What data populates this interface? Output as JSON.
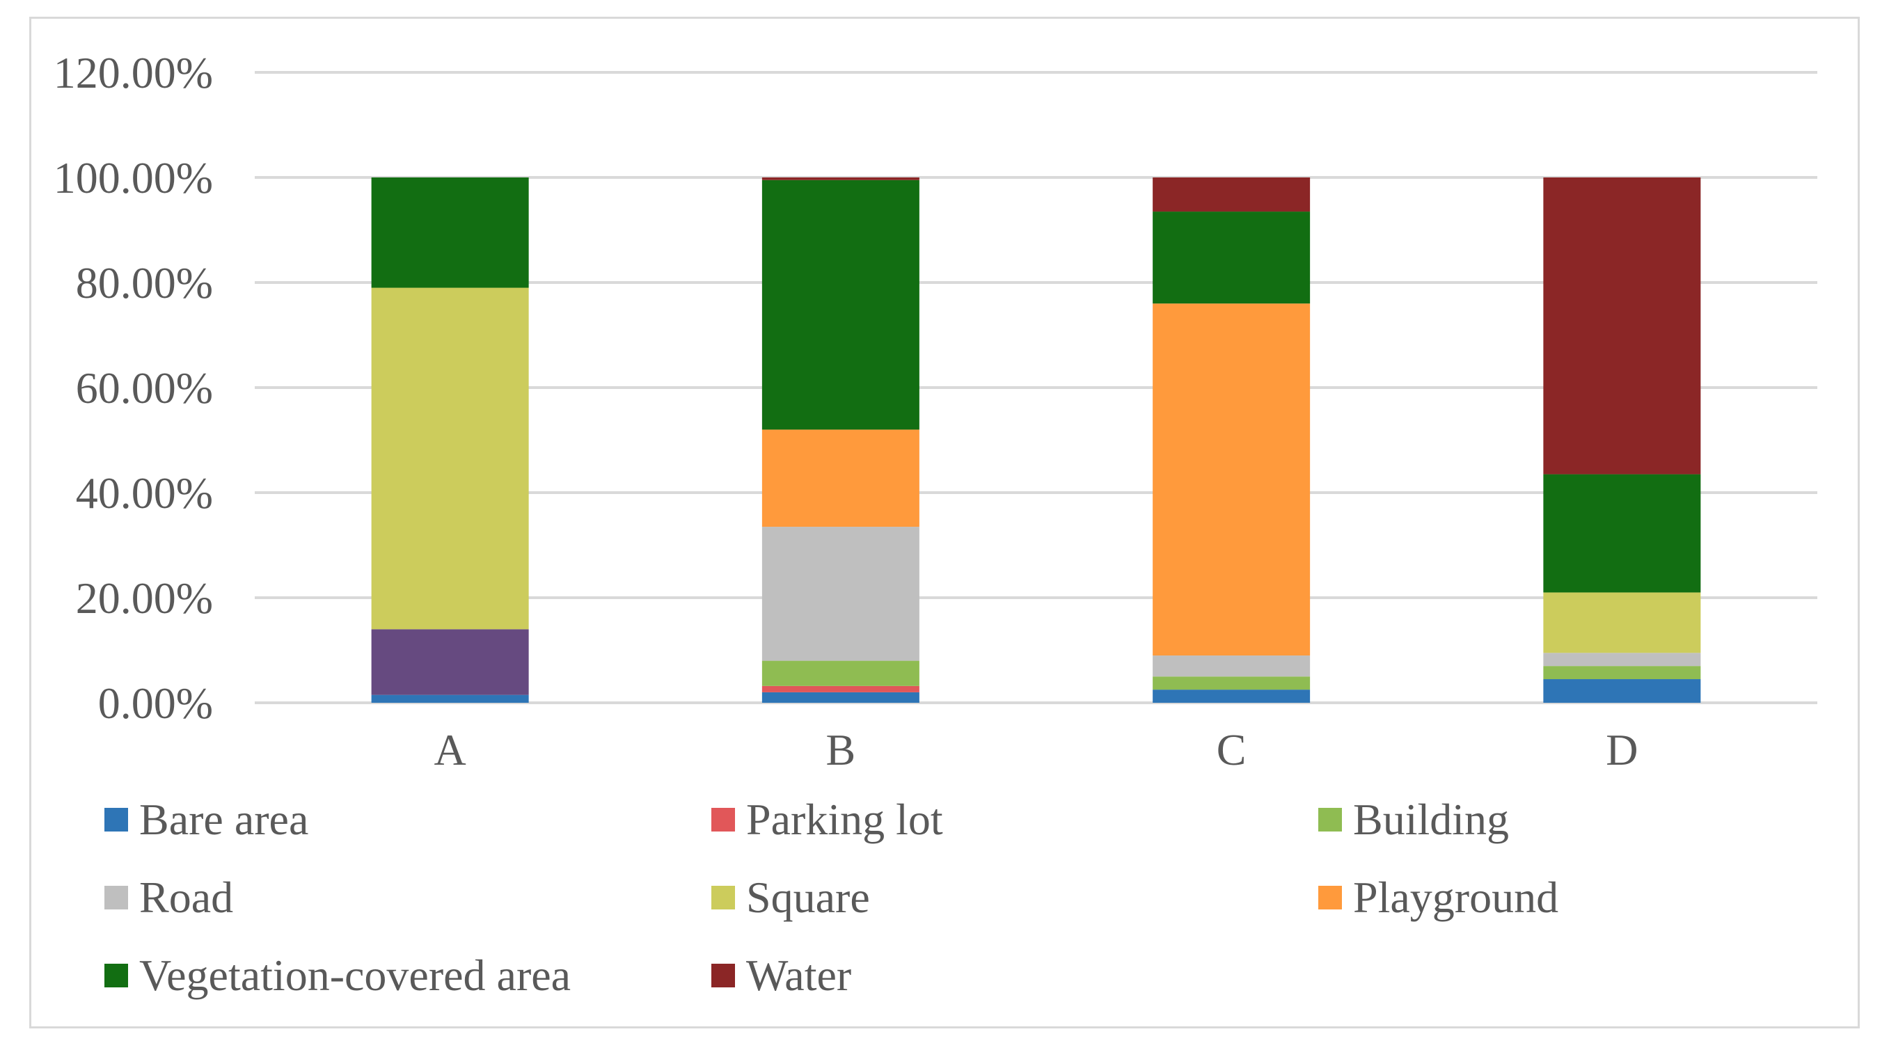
{
  "chart_data": {
    "type": "bar",
    "stacked": true,
    "title": "",
    "xlabel": "",
    "ylabel": "",
    "ylim": [
      0,
      1.2
    ],
    "ytick_values": [
      0,
      0.2,
      0.4,
      0.6,
      0.8,
      1.0,
      1.2
    ],
    "ytick_labels": [
      "0.00%",
      "20.00%",
      "40.00%",
      "60.00%",
      "80.00%",
      "100.00%",
      "120.00%"
    ],
    "categories": [
      "A",
      "B",
      "C",
      "D"
    ],
    "grid": true,
    "legend_position": "bottom",
    "series": [
      {
        "name": "Bare area",
        "color": "#2e75b6",
        "values": [
          0.015,
          0.02,
          0.025,
          0.045
        ]
      },
      {
        "name": "Parking lot",
        "color": "#e15759",
        "values": [
          0.0,
          0.012,
          0.0,
          0.0
        ]
      },
      {
        "name": "Building",
        "color": "#8fbc52",
        "values": [
          0.0,
          0.048,
          0.025,
          0.025
        ]
      },
      {
        "name": "Road",
        "color": "#bfbfbf",
        "values": [
          0.0,
          0.255,
          0.04,
          0.025
        ]
      },
      {
        "name": "Square",
        "color": "#cccc5c",
        "values": [
          0.65,
          0.0,
          0.0,
          0.115
        ]
      },
      {
        "name": "Playground",
        "color": "#ff9a3c",
        "values": [
          0.0,
          0.185,
          0.67,
          0.0
        ]
      },
      {
        "name": "Vegetation-covered area",
        "color": "#126e12",
        "values": [
          0.21,
          0.475,
          0.175,
          0.225
        ]
      },
      {
        "name": "Water",
        "color": "#8b2626",
        "values": [
          0.0,
          0.005,
          0.065,
          0.565
        ]
      }
    ],
    "unlabeled_segments": [
      {
        "category": "A",
        "color": "#664a80",
        "value": 0.125,
        "stack_index": 1
      }
    ]
  }
}
